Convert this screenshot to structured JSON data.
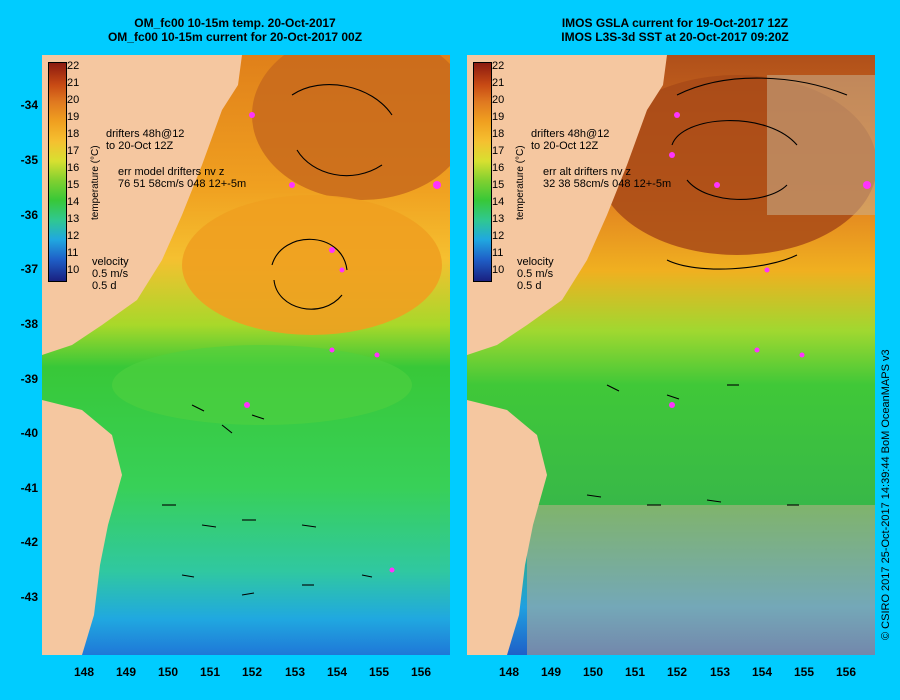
{
  "left_panel": {
    "title_line1": "OM_fc00 10-15m temp. 20-Oct-2017",
    "title_line2": "OM_fc00 10-15m current for 20-Oct-2017 00Z",
    "drifters_line1": "drifters 48h@12",
    "drifters_line2": "to 20-Oct 12Z",
    "err_line1": "err model drifters nv z",
    "err_line2": "76 51 58cm/s 048 12+-5m"
  },
  "right_panel": {
    "title_line1": "IMOS GSLA current for 19-Oct-2017 12Z",
    "title_line2": "IMOS L3S-3d SST at 20-Oct-2017 09:20Z",
    "drifters_line1": "drifters 48h@12",
    "drifters_line2": "to 20-Oct 12Z",
    "err_line1": "err alt drifters nv z",
    "err_line2": "32 38 58cm/s 048 12+-5m"
  },
  "colorbar": {
    "title": "temperature (°C)",
    "ticks": [
      "22",
      "21",
      "20",
      "19",
      "18",
      "17",
      "16",
      "15",
      "14",
      "13",
      "12",
      "11",
      "10"
    ]
  },
  "velocity_key": {
    "label": "velocity",
    "speed": "0.5 m/s",
    "duration": "0.5 d"
  },
  "y_ticks": [
    "-34",
    "-35",
    "-36",
    "-37",
    "-38",
    "-39",
    "-40",
    "-41",
    "-42",
    "-43"
  ],
  "x_ticks": [
    "148",
    "149",
    "150",
    "151",
    "152",
    "153",
    "154",
    "155",
    "156"
  ],
  "credit": "© CSIRO 2017  25-Oct-2017 14:39:44 BoM OceanMAPS v3",
  "colors": {
    "background": "#00ccff",
    "land": "#f5c7a0",
    "drifter": "#ff33ff"
  }
}
